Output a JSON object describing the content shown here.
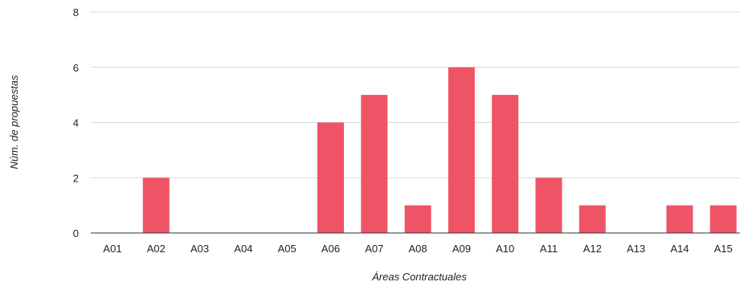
{
  "chart_data": {
    "type": "bar",
    "title": "",
    "xlabel": "Áreas Contractuales",
    "ylabel": "Núm. de propuestas",
    "categories": [
      "A01",
      "A02",
      "A03",
      "A04",
      "A05",
      "A06",
      "A07",
      "A08",
      "A09",
      "A10",
      "A11",
      "A12",
      "A13",
      "A14",
      "A15"
    ],
    "values": [
      0,
      2,
      0,
      0,
      0,
      4,
      5,
      1,
      6,
      5,
      2,
      1,
      0,
      1,
      1
    ],
    "ylim": [
      0,
      8
    ],
    "yticks": [
      "0",
      "2",
      "4",
      "6",
      "8"
    ],
    "grid": true,
    "legend": "none",
    "bar_color": "#ee5466"
  }
}
